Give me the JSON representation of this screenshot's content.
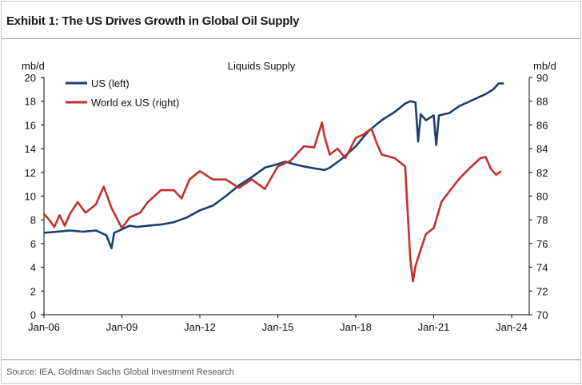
{
  "header": {
    "title": "Exhibit 1: The US Drives Growth in Global Oil Supply",
    "source": "Source: IEA, Goldman Sachs Global Investment Research"
  },
  "chart_data": {
    "type": "line",
    "title": "Liquids Supply",
    "y_left_label": "mb/d",
    "y_right_label": "mb/d",
    "y_left_lim": [
      0,
      20
    ],
    "y_right_lim": [
      70,
      90
    ],
    "y_left_ticks": [
      "0",
      "2",
      "4",
      "6",
      "8",
      "10",
      "12",
      "14",
      "16",
      "18",
      "20"
    ],
    "y_right_ticks": [
      "70",
      "72",
      "74",
      "76",
      "78",
      "80",
      "82",
      "84",
      "86",
      "88",
      "90"
    ],
    "x_ticks": [
      "Jan-06",
      "Jan-09",
      "Jan-12",
      "Jan-15",
      "Jan-18",
      "Jan-21",
      "Jan-24"
    ],
    "x_range": [
      2006.0,
      2024.0
    ],
    "grid": false,
    "legend_position": "top-left",
    "colors": {
      "us": "#1c3f6e",
      "world": "#c0312f"
    },
    "series": [
      {
        "name": "US (left)",
        "axis": "left",
        "x": [
          2006.0,
          2006.5,
          2007.0,
          2007.5,
          2008.0,
          2008.4,
          2008.6,
          2008.7,
          2008.8,
          2009.0,
          2009.3,
          2009.6,
          2010.0,
          2010.5,
          2011.0,
          2011.5,
          2012.0,
          2012.5,
          2013.0,
          2013.5,
          2014.0,
          2014.5,
          2015.0,
          2015.3,
          2015.6,
          2016.0,
          2016.5,
          2016.8,
          2017.0,
          2017.5,
          2018.0,
          2018.5,
          2019.0,
          2019.5,
          2019.9,
          2020.1,
          2020.3,
          2020.4,
          2020.5,
          2020.7,
          2021.0,
          2021.1,
          2021.2,
          2021.4,
          2021.6,
          2022.0,
          2022.5,
          2023.0,
          2023.3,
          2023.5,
          2023.7
        ],
        "values": [
          6.9,
          7.0,
          7.1,
          7.0,
          7.1,
          6.7,
          5.6,
          6.9,
          7.0,
          7.2,
          7.5,
          7.4,
          7.5,
          7.6,
          7.8,
          8.2,
          8.8,
          9.2,
          10.0,
          10.9,
          11.6,
          12.4,
          12.7,
          12.9,
          12.7,
          12.5,
          12.3,
          12.2,
          12.4,
          13.2,
          14.2,
          15.5,
          16.4,
          17.1,
          17.8,
          18.0,
          17.9,
          14.6,
          16.9,
          16.4,
          16.8,
          14.3,
          16.8,
          16.9,
          17.0,
          17.6,
          18.1,
          18.6,
          19.0,
          19.5,
          19.5
        ]
      },
      {
        "name": "World ex US (right)",
        "axis": "right",
        "x": [
          2006.0,
          2006.2,
          2006.4,
          2006.6,
          2006.8,
          2007.0,
          2007.3,
          2007.6,
          2008.0,
          2008.3,
          2008.6,
          2009.0,
          2009.3,
          2009.7,
          2010.0,
          2010.5,
          2011.0,
          2011.3,
          2011.6,
          2012.0,
          2012.5,
          2013.0,
          2013.5,
          2014.0,
          2014.5,
          2015.0,
          2015.5,
          2016.0,
          2016.4,
          2016.7,
          2016.8,
          2017.0,
          2017.3,
          2017.6,
          2018.0,
          2018.3,
          2018.6,
          2018.8,
          2019.0,
          2019.5,
          2019.9,
          2020.1,
          2020.2,
          2020.3,
          2020.5,
          2020.7,
          2021.0,
          2021.3,
          2021.6,
          2022.0,
          2022.4,
          2022.8,
          2023.0,
          2023.2,
          2023.4,
          2023.6
        ],
        "values": [
          78.5,
          78.0,
          77.4,
          78.4,
          77.5,
          78.5,
          79.5,
          78.6,
          79.3,
          80.8,
          79.0,
          77.3,
          78.2,
          78.6,
          79.5,
          80.5,
          80.5,
          79.8,
          81.4,
          82.1,
          81.4,
          81.4,
          80.7,
          81.4,
          80.6,
          82.5,
          83.0,
          84.2,
          84.1,
          86.2,
          85.0,
          83.5,
          84.0,
          83.2,
          84.9,
          85.2,
          85.7,
          84.5,
          83.5,
          83.2,
          82.5,
          74.7,
          72.8,
          74.1,
          75.5,
          76.8,
          77.3,
          79.5,
          80.4,
          81.5,
          82.4,
          83.2,
          83.3,
          82.3,
          81.8,
          82.1
        ]
      }
    ]
  }
}
